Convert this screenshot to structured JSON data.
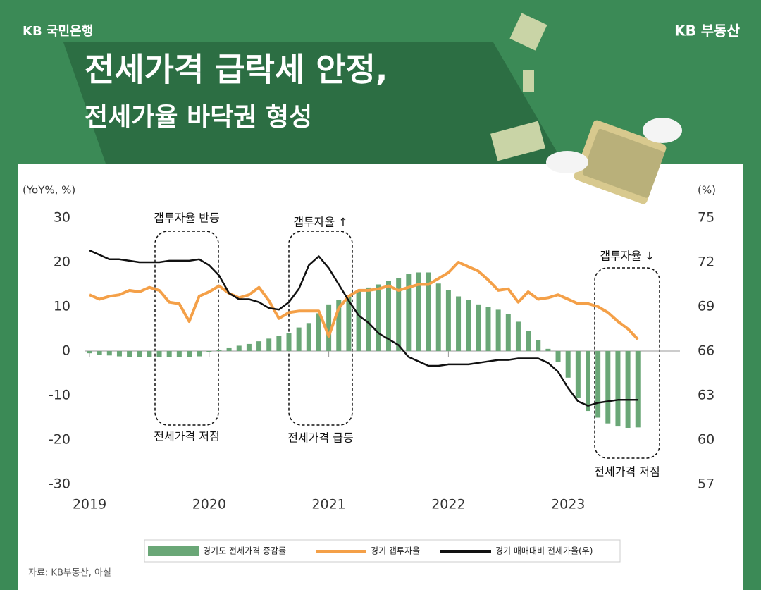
{
  "header": {
    "brand_left": "KB 국민은행",
    "brand_right": "KB 부동산",
    "title_line1": "전세가격 급락세 안정,",
    "title_line2": "전세가율 바닥권 형성"
  },
  "chart_data": {
    "type": "combo",
    "y_label": "(YoY%, %)",
    "y2_label": "(%)",
    "categories": [
      "2019",
      null,
      null,
      null,
      null,
      null,
      null,
      null,
      null,
      null,
      null,
      null,
      "2020",
      null,
      null,
      null,
      null,
      null,
      null,
      null,
      null,
      null,
      null,
      null,
      "2021",
      null,
      null,
      null,
      null,
      null,
      null,
      null,
      null,
      null,
      null,
      null,
      "2022",
      null,
      null,
      null,
      null,
      null,
      null,
      null,
      null,
      null,
      null,
      null,
      "2023",
      null,
      null,
      null,
      null,
      null,
      null,
      null
    ],
    "ylim": [
      -30,
      30
    ],
    "yticks": [
      -30,
      -20,
      -10,
      0,
      10,
      20,
      30
    ],
    "y2lim": [
      57,
      75
    ],
    "y2ticks": [
      57,
      60,
      63,
      66,
      69,
      72,
      75
    ],
    "grid": false,
    "series": [
      {
        "name": "경기도 전세가격 증감률",
        "type": "bar",
        "color": "#6aa777",
        "axis": "y",
        "values": [
          -0.5,
          -0.8,
          -1,
          -1.2,
          -1.3,
          -1.3,
          -1.3,
          -1.3,
          -1.4,
          -1.4,
          -1.3,
          -1.2,
          -0.3,
          0.3,
          0.8,
          1.2,
          1.6,
          2.2,
          2.8,
          3.4,
          4.0,
          5.3,
          6.3,
          8.5,
          10.5,
          11.5,
          12.5,
          13.5,
          14.3,
          15.0,
          15.8,
          16.5,
          17.3,
          17.7,
          17.7,
          15.2,
          13.8,
          12.3,
          11.5,
          10.5,
          10.0,
          9.3,
          8.3,
          6.6,
          4.6,
          2.5,
          0.5,
          -2.5,
          -6.0,
          -10.5,
          -13.5,
          -15.0,
          -16.3,
          -17.0,
          -17.3,
          -17.2
        ]
      },
      {
        "name": "경기 갭투자율",
        "type": "line",
        "color": "#f4a048",
        "axis": "y2",
        "values": [
          69.8,
          69.5,
          69.7,
          69.8,
          70.1,
          70.0,
          70.3,
          70.1,
          69.3,
          69.2,
          68.0,
          69.7,
          70.0,
          70.4,
          69.9,
          69.6,
          69.8,
          70.3,
          69.4,
          68.2,
          68.6,
          68.7,
          68.7,
          68.7,
          67.0,
          68.9,
          69.7,
          70.1,
          70.1,
          70.2,
          70.4,
          70.1,
          70.3,
          70.5,
          70.5,
          70.9,
          71.3,
          72.0,
          71.7,
          71.4,
          70.8,
          70.1,
          70.2,
          69.3,
          70.0,
          69.5,
          69.6,
          69.8,
          69.5,
          69.2,
          69.2,
          69.0,
          68.6,
          68.0,
          67.5,
          66.8
        ]
      },
      {
        "name": "경기 매매대비 전세가율(우)",
        "type": "line",
        "color": "#111111",
        "axis": "y2",
        "values": [
          72.8,
          72.5,
          72.2,
          72.2,
          72.1,
          72.0,
          72.0,
          72.0,
          72.1,
          72.1,
          72.1,
          72.2,
          71.8,
          71.1,
          69.9,
          69.5,
          69.5,
          69.3,
          68.9,
          68.8,
          69.3,
          70.2,
          71.8,
          72.4,
          71.6,
          70.5,
          69.4,
          68.4,
          67.9,
          67.2,
          66.8,
          66.4,
          65.6,
          65.3,
          65.0,
          65.0,
          65.1,
          65.1,
          65.1,
          65.2,
          65.3,
          65.4,
          65.4,
          65.5,
          65.5,
          65.5,
          65.2,
          64.6,
          63.5,
          62.6,
          62.3,
          62.5,
          62.6,
          62.7,
          62.7,
          62.7
        ]
      }
    ],
    "annotations": [
      "갭투자율 반등",
      "전세가격 저점",
      "갭투자율 ↑",
      "전세가격 급등",
      "갭투자율 ↓",
      "전세가격 저점"
    ],
    "source": "자료: KB부동산, 아실"
  }
}
